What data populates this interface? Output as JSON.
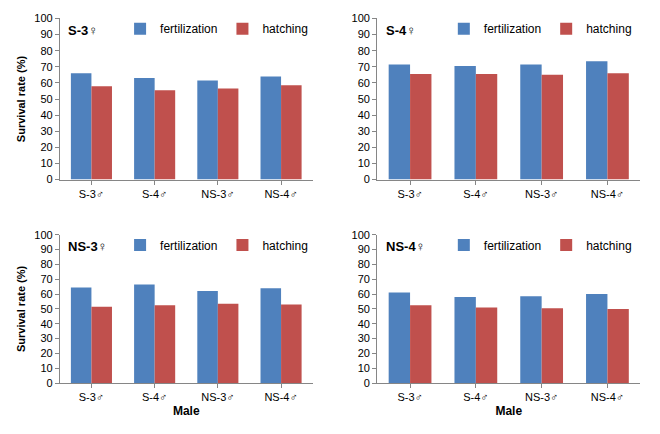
{
  "chart_data": [
    {
      "type": "bar",
      "title": "S-3♀",
      "y_label": "Survival rate (%)",
      "categories": [
        "S-3♂",
        "S-4♂",
        "NS-3♂",
        "NS-4♂"
      ],
      "series": [
        {
          "name": "fertilization",
          "color": "#4f81bd",
          "values": [
            66,
            63,
            61.5,
            64
          ]
        },
        {
          "name": "hatching",
          "color": "#c0504d",
          "values": [
            58,
            55.5,
            56.5,
            58.5
          ]
        }
      ],
      "ylim": [
        0,
        100
      ],
      "yticks": [
        0,
        10,
        20,
        30,
        40,
        50,
        60,
        70,
        80,
        90,
        100
      ],
      "grid": false,
      "legend": "top"
    },
    {
      "type": "bar",
      "title": "S-4♀",
      "categories": [
        "S-3♂",
        "S-4♂",
        "NS-3♂",
        "NS-4♂"
      ],
      "series": [
        {
          "name": "fertilization",
          "color": "#4f81bd",
          "values": [
            71.5,
            70.5,
            71.5,
            73.5
          ]
        },
        {
          "name": "hatching",
          "color": "#c0504d",
          "values": [
            65.5,
            65.5,
            65,
            66
          ]
        }
      ],
      "ylim": [
        0,
        100
      ],
      "yticks": [
        0,
        10,
        20,
        30,
        40,
        50,
        60,
        70,
        80,
        90,
        100
      ],
      "grid": false,
      "legend": "top"
    },
    {
      "type": "bar",
      "title": "NS-3♀",
      "y_label": "Survival rate (%)",
      "x_label": "Male",
      "categories": [
        "S-3♂",
        "S-4♂",
        "NS-3♂",
        "NS-4♂"
      ],
      "series": [
        {
          "name": "fertilization",
          "color": "#4f81bd",
          "values": [
            64.5,
            66.5,
            62,
            64
          ]
        },
        {
          "name": "hatching",
          "color": "#c0504d",
          "values": [
            51.5,
            52.5,
            53.5,
            53
          ]
        }
      ],
      "ylim": [
        0,
        100
      ],
      "yticks": [
        0,
        10,
        20,
        30,
        40,
        50,
        60,
        70,
        80,
        90,
        100
      ],
      "grid": false,
      "legend": "top"
    },
    {
      "type": "bar",
      "title": "NS-4♀",
      "x_label": "Male",
      "categories": [
        "S-3♂",
        "S-4♂",
        "NS-3♂",
        "NS-4♂"
      ],
      "series": [
        {
          "name": "fertilization",
          "color": "#4f81bd",
          "values": [
            61,
            58,
            58.5,
            60
          ]
        },
        {
          "name": "hatching",
          "color": "#c0504d",
          "values": [
            52.5,
            51,
            50.5,
            50
          ]
        }
      ],
      "ylim": [
        0,
        100
      ],
      "yticks": [
        0,
        10,
        20,
        30,
        40,
        50,
        60,
        70,
        80,
        90,
        100
      ],
      "grid": false,
      "legend": "top"
    }
  ]
}
